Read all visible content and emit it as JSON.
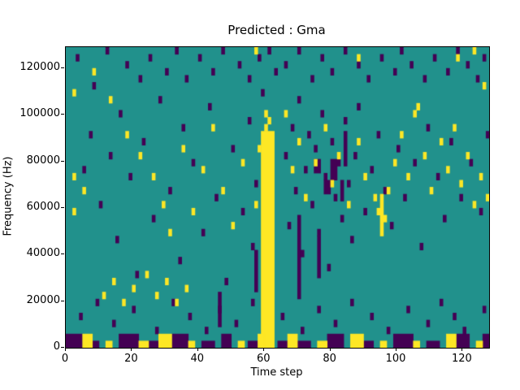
{
  "chart_data": {
    "type": "heatmap",
    "title": "Predicted : Gma",
    "xlabel": "Time step",
    "ylabel": "Frequency (Hz)",
    "x_max": 128,
    "y_max": 129000,
    "x_ticks": [
      0,
      20,
      40,
      60,
      80,
      100,
      120
    ],
    "y_ticks": [
      0,
      20000,
      40000,
      60000,
      80000,
      100000,
      120000
    ],
    "grid": {
      "cols": 128,
      "rows": 43
    },
    "legend": "none",
    "colors": {
      "background": "#21918c",
      "purple": "#440154",
      "yellow": "#fde725",
      "axis": "#000000"
    },
    "rects": [
      {
        "color": "yellow",
        "x": 59,
        "y": 0,
        "w": 4,
        "h": 31
      },
      {
        "color": "yellow",
        "x": 95,
        "y": 16,
        "w": 1,
        "h": 6
      },
      {
        "color": "purple",
        "x": 70,
        "y": 7,
        "w": 1,
        "h": 12
      },
      {
        "color": "purple",
        "x": 57,
        "y": 8,
        "w": 1,
        "h": 6
      },
      {
        "color": "purple",
        "x": 46,
        "y": 3,
        "w": 1,
        "h": 5
      },
      {
        "color": "purple",
        "x": 76,
        "y": 10,
        "w": 1,
        "h": 6
      },
      {
        "color": "purple",
        "x": 84,
        "y": 26,
        "w": 1,
        "h": 5
      },
      {
        "color": "purple",
        "x": 78,
        "y": 22,
        "w": 2,
        "h": 2
      },
      {
        "color": "purple",
        "x": 80,
        "y": 24,
        "w": 2,
        "h": 3
      },
      {
        "color": "purple",
        "x": 75,
        "y": 25,
        "w": 2,
        "h": 2
      },
      {
        "color": "purple",
        "x": 83,
        "y": 21,
        "w": 1,
        "h": 3
      },
      {
        "color": "purple",
        "x": 0,
        "y": 0,
        "w": 5,
        "h": 2
      },
      {
        "color": "yellow",
        "x": 5,
        "y": 0,
        "w": 3,
        "h": 2
      },
      {
        "color": "purple",
        "x": 8,
        "y": 0,
        "w": 2,
        "h": 1
      },
      {
        "color": "yellow",
        "x": 12,
        "y": 0,
        "w": 2,
        "h": 1
      },
      {
        "color": "purple",
        "x": 16,
        "y": 0,
        "w": 6,
        "h": 2
      },
      {
        "color": "yellow",
        "x": 22,
        "y": 0,
        "w": 3,
        "h": 1
      },
      {
        "color": "purple",
        "x": 25,
        "y": 0,
        "w": 3,
        "h": 1
      },
      {
        "color": "yellow",
        "x": 28,
        "y": 0,
        "w": 4,
        "h": 2
      },
      {
        "color": "purple",
        "x": 32,
        "y": 0,
        "w": 5,
        "h": 2
      },
      {
        "color": "yellow",
        "x": 37,
        "y": 0,
        "w": 2,
        "h": 1
      },
      {
        "color": "purple",
        "x": 41,
        "y": 0,
        "w": 4,
        "h": 1
      },
      {
        "color": "purple",
        "x": 47,
        "y": 0,
        "w": 3,
        "h": 2
      },
      {
        "color": "yellow",
        "x": 52,
        "y": 0,
        "w": 2,
        "h": 1
      },
      {
        "color": "purple",
        "x": 55,
        "y": 0,
        "w": 3,
        "h": 1
      },
      {
        "color": "yellow",
        "x": 58,
        "y": 0,
        "w": 2,
        "h": 2
      },
      {
        "color": "purple",
        "x": 64,
        "y": 0,
        "w": 3,
        "h": 1
      },
      {
        "color": "yellow",
        "x": 67,
        "y": 0,
        "w": 3,
        "h": 2
      },
      {
        "color": "purple",
        "x": 70,
        "y": 0,
        "w": 4,
        "h": 1
      },
      {
        "color": "yellow",
        "x": 76,
        "y": 0,
        "w": 3,
        "h": 1
      },
      {
        "color": "purple",
        "x": 79,
        "y": 0,
        "w": 5,
        "h": 2
      },
      {
        "color": "yellow",
        "x": 86,
        "y": 0,
        "w": 4,
        "h": 2
      },
      {
        "color": "purple",
        "x": 90,
        "y": 0,
        "w": 3,
        "h": 1
      },
      {
        "color": "yellow",
        "x": 95,
        "y": 0,
        "w": 2,
        "h": 1
      },
      {
        "color": "purple",
        "x": 99,
        "y": 0,
        "w": 6,
        "h": 2
      },
      {
        "color": "yellow",
        "x": 105,
        "y": 0,
        "w": 2,
        "h": 1
      },
      {
        "color": "purple",
        "x": 109,
        "y": 0,
        "w": 4,
        "h": 1
      },
      {
        "color": "yellow",
        "x": 115,
        "y": 0,
        "w": 3,
        "h": 2
      },
      {
        "color": "purple",
        "x": 118,
        "y": 0,
        "w": 4,
        "h": 2
      },
      {
        "color": "yellow",
        "x": 124,
        "y": 0,
        "w": 2,
        "h": 1
      },
      {
        "color": "purple",
        "x": 126,
        "y": 0,
        "w": 2,
        "h": 2
      }
    ],
    "cells": {
      "purple": [
        [
          3,
          41
        ],
        [
          8,
          37
        ],
        [
          12,
          42
        ],
        [
          18,
          40
        ],
        [
          22,
          38
        ],
        [
          25,
          41
        ],
        [
          30,
          39
        ],
        [
          33,
          42
        ],
        [
          36,
          38
        ],
        [
          40,
          41
        ],
        [
          44,
          39
        ],
        [
          47,
          42
        ],
        [
          52,
          40
        ],
        [
          55,
          38
        ],
        [
          58,
          41
        ],
        [
          61,
          42
        ],
        [
          63,
          39
        ],
        [
          66,
          40
        ],
        [
          70,
          42
        ],
        [
          74,
          38
        ],
        [
          77,
          41
        ],
        [
          80,
          39
        ],
        [
          84,
          42
        ],
        [
          88,
          40
        ],
        [
          91,
          38
        ],
        [
          95,
          41
        ],
        [
          99,
          39
        ],
        [
          101,
          42
        ],
        [
          104,
          40
        ],
        [
          108,
          38
        ],
        [
          111,
          41
        ],
        [
          115,
          39
        ],
        [
          118,
          42
        ],
        [
          121,
          40
        ],
        [
          124,
          38
        ],
        [
          126,
          41
        ],
        [
          5,
          25
        ],
        [
          7,
          30
        ],
        [
          10,
          20
        ],
        [
          13,
          27
        ],
        [
          15,
          15
        ],
        [
          16,
          33
        ],
        [
          19,
          24
        ],
        [
          21,
          10
        ],
        [
          23,
          29
        ],
        [
          26,
          18
        ],
        [
          28,
          35
        ],
        [
          31,
          22
        ],
        [
          34,
          12
        ],
        [
          35,
          31
        ],
        [
          38,
          26
        ],
        [
          41,
          16
        ],
        [
          43,
          34
        ],
        [
          45,
          21
        ],
        [
          48,
          9
        ],
        [
          50,
          28
        ],
        [
          53,
          19
        ],
        [
          55,
          32
        ],
        [
          56,
          14
        ],
        [
          57,
          23
        ],
        [
          59,
          36
        ],
        [
          66,
          27
        ],
        [
          67,
          17
        ],
        [
          68,
          31
        ],
        [
          69,
          22
        ],
        [
          70,
          35
        ],
        [
          71,
          13
        ],
        [
          72,
          25
        ],
        [
          73,
          30
        ],
        [
          74,
          20
        ],
        [
          75,
          28
        ],
        [
          76,
          16
        ],
        [
          77,
          33
        ],
        [
          78,
          24
        ],
        [
          79,
          11
        ],
        [
          80,
          29
        ],
        [
          81,
          21
        ],
        [
          82,
          26
        ],
        [
          83,
          18
        ],
        [
          84,
          32
        ],
        [
          85,
          23
        ],
        [
          86,
          15
        ],
        [
          87,
          27
        ],
        [
          88,
          34
        ],
        [
          90,
          19
        ],
        [
          92,
          25
        ],
        [
          94,
          30
        ],
        [
          96,
          22
        ],
        [
          98,
          17
        ],
        [
          100,
          28
        ],
        [
          102,
          21
        ],
        [
          105,
          26
        ],
        [
          107,
          14
        ],
        [
          109,
          31
        ],
        [
          112,
          24
        ],
        [
          114,
          18
        ],
        [
          116,
          29
        ],
        [
          119,
          21
        ],
        [
          122,
          26
        ],
        [
          125,
          19
        ],
        [
          127,
          30
        ],
        [
          4,
          4
        ],
        [
          9,
          6
        ],
        [
          14,
          3
        ],
        [
          20,
          5
        ],
        [
          27,
          2
        ],
        [
          32,
          6
        ],
        [
          37,
          4
        ],
        [
          42,
          2
        ],
        [
          46,
          5
        ],
        [
          51,
          3
        ],
        [
          56,
          6
        ],
        [
          65,
          4
        ],
        [
          71,
          2
        ],
        [
          76,
          5
        ],
        [
          81,
          3
        ],
        [
          86,
          6
        ],
        [
          92,
          4
        ],
        [
          97,
          2
        ],
        [
          103,
          5
        ],
        [
          109,
          3
        ],
        [
          113,
          6
        ],
        [
          117,
          4
        ],
        [
          120,
          2
        ],
        [
          126,
          5
        ]
      ],
      "yellow": [
        [
          11,
          7
        ],
        [
          14,
          9
        ],
        [
          17,
          6
        ],
        [
          20,
          8
        ],
        [
          24,
          10
        ],
        [
          27,
          7
        ],
        [
          30,
          9
        ],
        [
          33,
          6
        ],
        [
          36,
          8
        ],
        [
          2,
          19
        ],
        [
          2,
          24
        ],
        [
          5,
          22
        ],
        [
          8,
          39
        ],
        [
          13,
          35
        ],
        [
          18,
          30
        ],
        [
          22,
          27
        ],
        [
          26,
          24
        ],
        [
          29,
          20
        ],
        [
          31,
          16
        ],
        [
          35,
          28
        ],
        [
          38,
          19
        ],
        [
          41,
          25
        ],
        [
          44,
          31
        ],
        [
          47,
          22
        ],
        [
          50,
          17
        ],
        [
          53,
          26
        ],
        [
          57,
          20
        ],
        [
          58,
          28
        ],
        [
          60,
          31
        ],
        [
          61,
          32
        ],
        [
          60,
          33
        ],
        [
          66,
          33
        ],
        [
          68,
          25
        ],
        [
          70,
          29
        ],
        [
          72,
          21
        ],
        [
          75,
          26
        ],
        [
          78,
          31
        ],
        [
          80,
          23
        ],
        [
          82,
          27
        ],
        [
          85,
          20
        ],
        [
          88,
          29
        ],
        [
          90,
          24
        ],
        [
          93,
          21
        ],
        [
          94,
          19
        ],
        [
          96,
          18
        ],
        [
          97,
          22
        ],
        [
          99,
          26
        ],
        [
          101,
          30
        ],
        [
          103,
          24
        ],
        [
          105,
          33
        ],
        [
          106,
          34
        ],
        [
          108,
          27
        ],
        [
          110,
          22
        ],
        [
          113,
          29
        ],
        [
          115,
          25
        ],
        [
          117,
          31
        ],
        [
          119,
          23
        ],
        [
          121,
          27
        ],
        [
          123,
          20
        ],
        [
          125,
          24
        ],
        [
          126,
          37
        ],
        [
          127,
          21
        ],
        [
          2,
          36
        ],
        [
          57,
          42
        ],
        [
          88,
          41
        ],
        [
          118,
          41
        ],
        [
          123,
          42
        ]
      ]
    }
  }
}
